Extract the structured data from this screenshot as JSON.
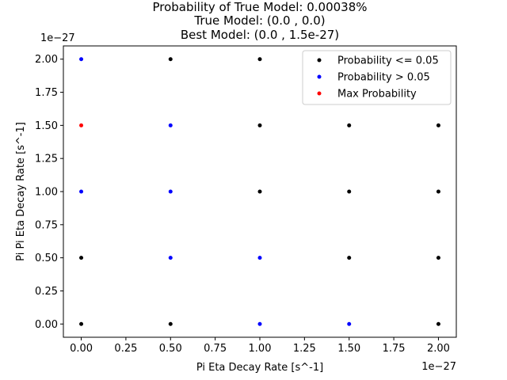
{
  "chart_data": {
    "type": "scatter",
    "title": [
      "Probability of True Model: 0.00038%",
      "True Model: (0.0 , 0.0)",
      "Best Model: (0.0 , 1.5e-27)"
    ],
    "xlabel": "Pi Eta Decay Rate [s^-1]",
    "ylabel": "Pi Pi Eta Decay Rate [s^-1]",
    "x_offset_label": "1e−27",
    "y_offset_label": "1e−27",
    "xlim": [
      -0.1,
      2.1
    ],
    "ylim": [
      -0.1,
      2.1
    ],
    "x_ticks": [
      0.0,
      0.25,
      0.5,
      0.75,
      1.0,
      1.25,
      1.5,
      1.75,
      2.0
    ],
    "y_ticks": [
      0.0,
      0.25,
      0.5,
      0.75,
      1.0,
      1.25,
      1.5,
      1.75,
      2.0
    ],
    "tick_labels": [
      "0.00",
      "0.25",
      "0.50",
      "0.75",
      "1.00",
      "1.25",
      "1.50",
      "1.75",
      "2.00"
    ],
    "grid": false,
    "legend_position": "upper right",
    "series": [
      {
        "name": "Probability <= 0.05",
        "color": "#000000",
        "points": [
          [
            0.0,
            0.0
          ],
          [
            0.0,
            0.5
          ],
          [
            0.5,
            0.0
          ],
          [
            0.5,
            2.0
          ],
          [
            1.0,
            1.0
          ],
          [
            1.0,
            1.5
          ],
          [
            1.0,
            2.0
          ],
          [
            1.5,
            0.5
          ],
          [
            1.5,
            1.0
          ],
          [
            1.5,
            1.5
          ],
          [
            2.0,
            0.0
          ],
          [
            2.0,
            0.5
          ],
          [
            2.0,
            1.0
          ],
          [
            2.0,
            1.5
          ]
        ]
      },
      {
        "name": "Probability > 0.05",
        "color": "#0000ff",
        "points": [
          [
            0.0,
            1.0
          ],
          [
            0.0,
            2.0
          ],
          [
            0.5,
            0.5
          ],
          [
            0.5,
            1.0
          ],
          [
            0.5,
            1.5
          ],
          [
            1.0,
            0.0
          ],
          [
            1.0,
            0.5
          ],
          [
            1.5,
            0.0
          ]
        ]
      },
      {
        "name": "Max Probability",
        "color": "#ff0000",
        "points": [
          [
            0.0,
            1.5
          ]
        ]
      }
    ]
  }
}
